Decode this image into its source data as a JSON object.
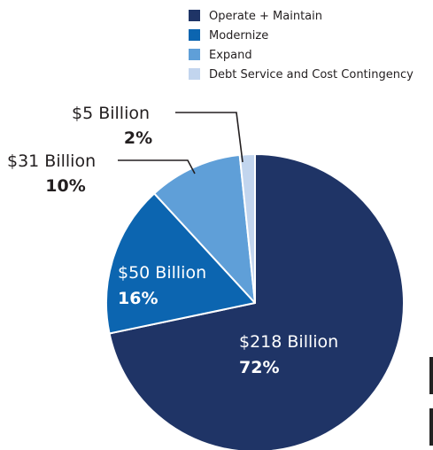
{
  "chart_data": {
    "type": "pie",
    "title": "",
    "legend_position": "top-right",
    "slices": [
      {
        "name": "Operate + Maintain",
        "value": 218,
        "label": "$218 Billion",
        "percent": "72%",
        "color": "#1f3466"
      },
      {
        "name": "Modernize",
        "value": 50,
        "label": "$50 Billion",
        "percent": "16%",
        "color": "#0c65b0"
      },
      {
        "name": "Expand",
        "value": 31,
        "label": "$31 Billion",
        "percent": "10%",
        "color": "#5f9fd8"
      },
      {
        "name": "Debt Service and Cost Contingency",
        "value": 5,
        "label": "$5 Billion",
        "percent": "2%",
        "color": "#c2d5ee"
      }
    ]
  }
}
